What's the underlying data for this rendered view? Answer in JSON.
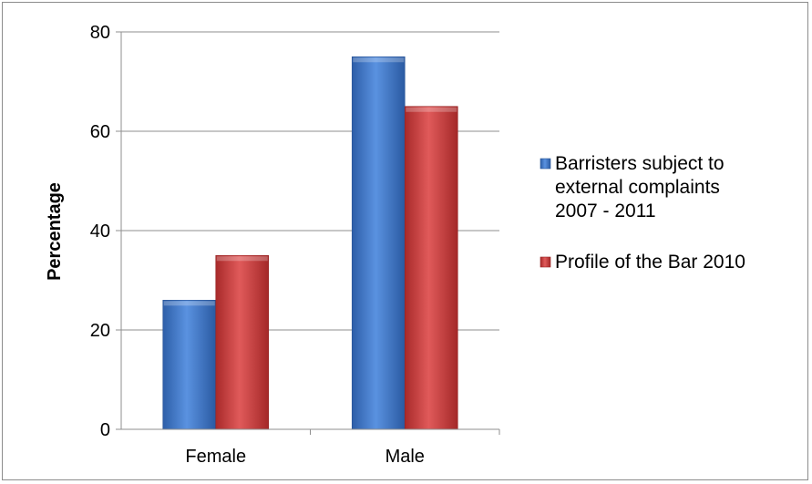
{
  "chart_data": {
    "type": "bar",
    "title": "",
    "xlabel": "",
    "ylabel": "Percentage",
    "ylim": [
      0,
      80
    ],
    "yticks": [
      "0",
      "20",
      "40",
      "60",
      "80"
    ],
    "categories": [
      "Female",
      "Male"
    ],
    "series": [
      {
        "name_lines": [
          "Barristers subject to",
          "external complaints",
          "2007 - 2011"
        ],
        "values": [
          26,
          75
        ],
        "color": "#3f76c4"
      },
      {
        "name_lines": [
          "Profile of the Bar 2010"
        ],
        "values": [
          35,
          65
        ],
        "color": "#c43b3b"
      }
    ],
    "grid": true,
    "legend_position": "right"
  }
}
